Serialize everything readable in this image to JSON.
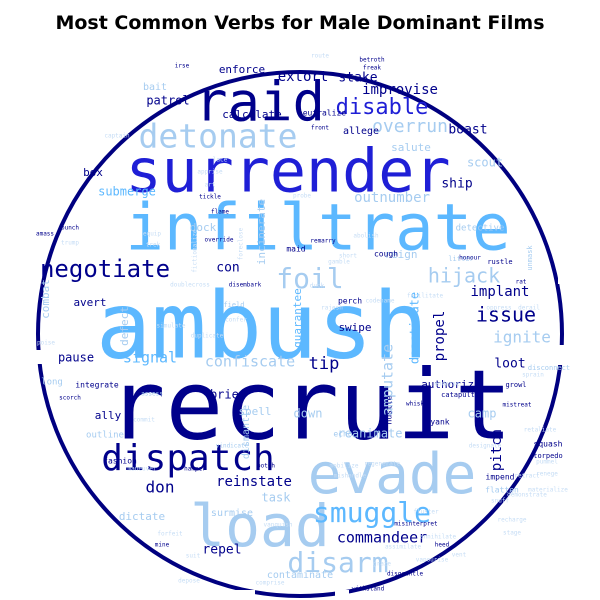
{
  "chart_data": {
    "type": "wordcloud",
    "title": "Most Common Verbs for Male Dominant Films",
    "shape": "circle",
    "colors": {
      "outline": "#000080",
      "dark_navy": "#00008b",
      "blue": "#1f1fd6",
      "sky_blue": "#5cb8ff",
      "light_blue": "#a6ccf0",
      "pale_blue": "#c6ddf5"
    },
    "words": [
      {
        "text": "ambush",
        "weight": 95,
        "color": "sky_blue"
      },
      {
        "text": "recruit",
        "weight": 100,
        "color": "dark_navy"
      },
      {
        "text": "infiltrate",
        "weight": 78,
        "color": "sky_blue"
      },
      {
        "text": "surrender",
        "weight": 74,
        "color": "blue"
      },
      {
        "text": "load",
        "weight": 62,
        "color": "light_blue"
      },
      {
        "text": "evade",
        "weight": 58,
        "color": "light_blue"
      },
      {
        "text": "raid",
        "weight": 56,
        "color": "dark_navy"
      },
      {
        "text": "dispatch",
        "weight": 45,
        "color": "dark_navy"
      },
      {
        "text": "detonate",
        "weight": 40,
        "color": "light_blue"
      },
      {
        "text": "smuggle",
        "weight": 32,
        "color": "sky_blue"
      },
      {
        "text": "disarm",
        "weight": 30,
        "color": "light_blue"
      },
      {
        "text": "foil",
        "weight": 30,
        "color": "light_blue"
      },
      {
        "text": "negotiate",
        "weight": 28,
        "color": "dark_navy"
      },
      {
        "text": "disable",
        "weight": 26,
        "color": "blue"
      },
      {
        "text": "hijack",
        "weight": 24,
        "color": "light_blue"
      },
      {
        "text": "issue",
        "weight": 22,
        "color": "dark_navy"
      },
      {
        "text": "overrun",
        "weight": 20,
        "color": "light_blue"
      },
      {
        "text": "commandeer",
        "weight": 18,
        "color": "dark_navy"
      },
      {
        "text": "confiscate",
        "weight": 18,
        "color": "light_blue"
      },
      {
        "text": "ignite",
        "weight": 17,
        "color": "light_blue"
      },
      {
        "text": "signal",
        "weight": 17,
        "color": "sky_blue"
      },
      {
        "text": "tip",
        "weight": 17,
        "color": "dark_navy"
      },
      {
        "text": "amputate",
        "weight": 16,
        "color": "light_blue"
      },
      {
        "text": "outnumber",
        "weight": 15,
        "color": "light_blue"
      },
      {
        "text": "improvise",
        "weight": 15,
        "color": "dark_navy"
      },
      {
        "text": "extort",
        "weight": 14,
        "color": "dark_navy"
      },
      {
        "text": "stake",
        "weight": 14,
        "color": "dark_navy"
      },
      {
        "text": "boast",
        "weight": 13,
        "color": "dark_navy"
      },
      {
        "text": "propel",
        "weight": 15,
        "color": "dark_navy"
      },
      {
        "text": "pitch",
        "weight": 15,
        "color": "dark_navy"
      },
      {
        "text": "implant",
        "weight": 14,
        "color": "dark_navy"
      },
      {
        "text": "reinstate",
        "weight": 14,
        "color": "dark_navy"
      },
      {
        "text": "don",
        "weight": 16,
        "color": "dark_navy"
      },
      {
        "text": "repel",
        "weight": 13,
        "color": "dark_navy"
      },
      {
        "text": "reanimate",
        "weight": 12,
        "color": "light_blue"
      },
      {
        "text": "task",
        "weight": 12,
        "color": "light_blue"
      },
      {
        "text": "patrol",
        "weight": 12,
        "color": "dark_navy"
      },
      {
        "text": "enforce",
        "weight": 11,
        "color": "dark_navy"
      },
      {
        "text": "calculate",
        "weight": 11,
        "color": "dark_navy"
      },
      {
        "text": "neutralize",
        "weight": 8,
        "color": "dark_navy"
      },
      {
        "text": "allege",
        "weight": 10,
        "color": "dark_navy"
      },
      {
        "text": "salute",
        "weight": 11,
        "color": "light_blue"
      },
      {
        "text": "implement",
        "weight": 8,
        "color": "light_blue"
      },
      {
        "text": "scout",
        "weight": 12,
        "color": "light_blue"
      },
      {
        "text": "ship",
        "weight": 13,
        "color": "dark_navy"
      },
      {
        "text": "detective",
        "weight": 9,
        "color": "light_blue"
      },
      {
        "text": "submerge",
        "weight": 12,
        "color": "sky_blue"
      },
      {
        "text": "box",
        "weight": 11,
        "color": "dark_navy"
      },
      {
        "text": "bait",
        "weight": 10,
        "color": "light_blue"
      },
      {
        "text": "dock",
        "weight": 11,
        "color": "light_blue"
      },
      {
        "text": "incinerate",
        "weight": 11,
        "color": "light_blue"
      },
      {
        "text": "reign",
        "weight": 11,
        "color": "light_blue"
      },
      {
        "text": "con",
        "weight": 13,
        "color": "dark_navy"
      },
      {
        "text": "deactivate",
        "weight": 12,
        "color": "sky_blue"
      },
      {
        "text": "guarantee",
        "weight": 11,
        "color": "sky_blue"
      },
      {
        "text": "swipe",
        "weight": 11,
        "color": "dark_navy"
      },
      {
        "text": "loot",
        "weight": 13,
        "color": "dark_navy"
      },
      {
        "text": "authorize",
        "weight": 11,
        "color": "dark_navy"
      },
      {
        "text": "camp",
        "weight": 12,
        "color": "light_blue"
      },
      {
        "text": "combat",
        "weight": 11,
        "color": "light_blue"
      },
      {
        "text": "avert",
        "weight": 11,
        "color": "dark_navy"
      },
      {
        "text": "defect",
        "weight": 11,
        "color": "light_blue"
      },
      {
        "text": "pause",
        "weight": 12,
        "color": "dark_navy"
      },
      {
        "text": "brief",
        "weight": 12,
        "color": "dark_navy"
      },
      {
        "text": "spell",
        "weight": 11,
        "color": "light_blue"
      },
      {
        "text": "down",
        "weight": 12,
        "color": "light_blue"
      },
      {
        "text": "dismantle",
        "weight": 10,
        "color": "light_blue"
      },
      {
        "text": "ally",
        "weight": 11,
        "color": "dark_navy"
      },
      {
        "text": "outline",
        "weight": 9,
        "color": "light_blue"
      },
      {
        "text": "fashion",
        "weight": 8,
        "color": "dark_navy"
      },
      {
        "text": "dictate",
        "weight": 11,
        "color": "light_blue"
      },
      {
        "text": "surmise",
        "weight": 10,
        "color": "light_blue"
      },
      {
        "text": "contaminate",
        "weight": 10,
        "color": "light_blue"
      },
      {
        "text": "squash",
        "weight": 8,
        "color": "dark_navy"
      },
      {
        "text": "torpedo",
        "weight": 7,
        "color": "dark_navy"
      },
      {
        "text": "flatten",
        "weight": 8,
        "color": "light_blue"
      },
      {
        "text": "impend",
        "weight": 8,
        "color": "dark_navy"
      },
      {
        "text": "catapult",
        "weight": 7,
        "color": "dark_navy"
      },
      {
        "text": "yank",
        "weight": 8,
        "color": "dark_navy"
      },
      {
        "text": "hustle",
        "weight": 8,
        "color": "dark_navy"
      },
      {
        "text": "echo",
        "weight": 8,
        "color": "light_blue"
      },
      {
        "text": "integrate",
        "weight": 8,
        "color": "dark_navy"
      },
      {
        "text": "long",
        "weight": 9,
        "color": "light_blue"
      },
      {
        "text": "disconnect",
        "weight": 7,
        "color": "light_blue"
      },
      {
        "text": "growl",
        "weight": 7,
        "color": "dark_navy"
      },
      {
        "text": "perch",
        "weight": 8,
        "color": "dark_navy"
      },
      {
        "text": "cough",
        "weight": 8,
        "color": "dark_navy"
      },
      {
        "text": "maid",
        "weight": 8,
        "color": "dark_navy"
      },
      {
        "text": "freak",
        "weight": 6,
        "color": "dark_navy"
      },
      {
        "text": "front",
        "weight": 6,
        "color": "dark_navy"
      },
      {
        "text": "flame",
        "weight": 6,
        "color": "dark_navy"
      },
      {
        "text": "override",
        "weight": 6,
        "color": "dark_navy"
      },
      {
        "text": "rustle",
        "weight": 7,
        "color": "dark_navy"
      },
      {
        "text": "litter",
        "weight": 7,
        "color": "light_blue"
      },
      {
        "text": "field",
        "weight": 7,
        "color": "light_blue"
      },
      {
        "text": "confer",
        "weight": 6,
        "color": "pale_blue"
      },
      {
        "text": "codename",
        "weight": 6,
        "color": "pale_blue"
      },
      {
        "text": "unmask",
        "weight": 7,
        "color": "light_blue"
      },
      {
        "text": "vindicate",
        "weight": 6,
        "color": "light_blue"
      },
      {
        "text": "mobilize",
        "weight": 6,
        "color": "pale_blue"
      },
      {
        "text": "hamper",
        "weight": 6,
        "color": "dark_navy"
      },
      {
        "text": "scorch",
        "weight": 6,
        "color": "dark_navy"
      },
      {
        "text": "assess",
        "weight": 6,
        "color": "light_blue"
      },
      {
        "text": "whisk",
        "weight": 6,
        "color": "dark_navy"
      },
      {
        "text": "mistreat",
        "weight": 6,
        "color": "dark_navy"
      },
      {
        "text": "designate",
        "weight": 6,
        "color": "pale_blue"
      },
      {
        "text": "snuff",
        "weight": 6,
        "color": "pale_blue"
      },
      {
        "text": "vanquish",
        "weight": 6,
        "color": "pale_blue"
      },
      {
        "text": "misinterpret",
        "weight": 6,
        "color": "dark_navy"
      },
      {
        "text": "annihilate",
        "weight": 6,
        "color": "pale_blue"
      },
      {
        "text": "assimilate",
        "weight": 6,
        "color": "pale_blue"
      },
      {
        "text": "heed",
        "weight": 6,
        "color": "dark_navy"
      },
      {
        "text": "vent",
        "weight": 6,
        "color": "pale_blue"
      },
      {
        "text": "disgruntle",
        "weight": 6,
        "color": "dark_navy"
      },
      {
        "text": "withstand",
        "weight": 6,
        "color": "dark_navy"
      },
      {
        "text": "mine",
        "weight": 6,
        "color": "dark_navy"
      },
      {
        "text": "suit",
        "weight": 6,
        "color": "pale_blue"
      },
      {
        "text": "forfeit",
        "weight": 6,
        "color": "pale_blue"
      },
      {
        "text": "comprise",
        "weight": 6,
        "color": "pale_blue"
      },
      {
        "text": "graze",
        "weight": 6,
        "color": "pale_blue"
      },
      {
        "text": "depose",
        "weight": 6,
        "color": "pale_blue"
      },
      {
        "text": "captain",
        "weight": 6,
        "color": "pale_blue"
      },
      {
        "text": "tickle",
        "weight": 6,
        "color": "dark_navy"
      },
      {
        "text": "bunch",
        "weight": 6,
        "color": "dark_navy"
      },
      {
        "text": "amass",
        "weight": 6,
        "color": "dark_navy"
      },
      {
        "text": "trump",
        "weight": 6,
        "color": "pale_blue"
      },
      {
        "text": "trek",
        "weight": 6,
        "color": "pale_blue"
      },
      {
        "text": "simulate",
        "weight": 6,
        "color": "pale_blue"
      },
      {
        "text": "disembark",
        "weight": 6,
        "color": "dark_navy"
      },
      {
        "text": "remarry",
        "weight": 6,
        "color": "dark_navy"
      },
      {
        "text": "abolish",
        "weight": 6,
        "color": "pale_blue"
      },
      {
        "text": "duck",
        "weight": 6,
        "color": "pale_blue"
      },
      {
        "text": "facilitate",
        "weight": 6,
        "color": "pale_blue"
      },
      {
        "text": "derail",
        "weight": 6,
        "color": "pale_blue"
      },
      {
        "text": "oppress",
        "weight": 6,
        "color": "pale_blue"
      },
      {
        "text": "rajesh",
        "weight": 6,
        "color": "pale_blue"
      },
      {
        "text": "duplicate",
        "weight": 6,
        "color": "pale_blue"
      },
      {
        "text": "poise",
        "weight": 6,
        "color": "pale_blue"
      },
      {
        "text": "mishandle",
        "weight": 6,
        "color": "pale_blue"
      },
      {
        "text": "rat",
        "weight": 6,
        "color": "dark_navy"
      },
      {
        "text": "honour",
        "weight": 6,
        "color": "dark_navy"
      },
      {
        "text": "betroth",
        "weight": 6,
        "color": "dark_navy"
      },
      {
        "text": "probe",
        "weight": 6,
        "color": "pale_blue"
      },
      {
        "text": "botch",
        "weight": 6,
        "color": "dark_navy"
      },
      {
        "text": "maneuver",
        "weight": 6,
        "color": "pale_blue"
      },
      {
        "text": "endorse",
        "weight": 6,
        "color": "pale_blue"
      },
      {
        "text": "renege",
        "weight": 6,
        "color": "pale_blue"
      },
      {
        "text": "materialize",
        "weight": 6,
        "color": "pale_blue"
      },
      {
        "text": "pummel",
        "weight": 6,
        "color": "pale_blue"
      },
      {
        "text": "regenerate",
        "weight": 6,
        "color": "pale_blue"
      },
      {
        "text": "lace",
        "weight": 6,
        "color": "pale_blue"
      },
      {
        "text": "art",
        "weight": 6,
        "color": "pale_blue"
      },
      {
        "text": "apprise",
        "weight": 6,
        "color": "pale_blue"
      },
      {
        "text": "route",
        "weight": 6,
        "color": "pale_blue"
      },
      {
        "text": "retract",
        "weight": 6,
        "color": "pale_blue"
      },
      {
        "text": "fictionalize",
        "weight": 6,
        "color": "pale_blue"
      },
      {
        "text": "foreclose",
        "weight": 6,
        "color": "pale_blue"
      },
      {
        "text": "doublecross",
        "weight": 6,
        "color": "pale_blue"
      },
      {
        "text": "irse",
        "weight": 6,
        "color": "dark_navy"
      },
      {
        "text": "vapourise",
        "weight": 6,
        "color": "pale_blue"
      },
      {
        "text": "recharge",
        "weight": 6,
        "color": "pale_blue"
      },
      {
        "text": "sprain",
        "weight": 6,
        "color": "pale_blue"
      },
      {
        "text": "fluster",
        "weight": 6,
        "color": "pale_blue"
      },
      {
        "text": "gamble",
        "weight": 6,
        "color": "pale_blue"
      },
      {
        "text": "equip",
        "weight": 6,
        "color": "pale_blue"
      },
      {
        "text": "retaliate",
        "weight": 6,
        "color": "pale_blue"
      },
      {
        "text": "short",
        "weight": 6,
        "color": "pale_blue"
      },
      {
        "text": "stage",
        "weight": 6,
        "color": "pale_blue"
      },
      {
        "text": "commit",
        "weight": 6,
        "color": "pale_blue"
      },
      {
        "text": "demonstrate",
        "weight": 6,
        "color": "pale_blue"
      }
    ]
  }
}
